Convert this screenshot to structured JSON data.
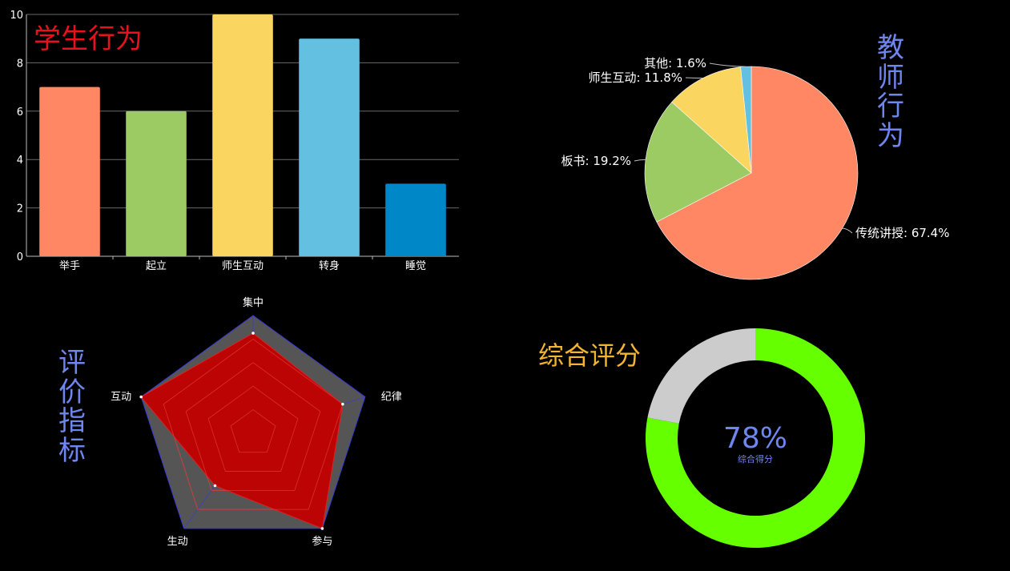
{
  "colors": {
    "background": "#000000",
    "student_title": "#e8121c",
    "teacher_title": "#6f86ee",
    "radar_title": "#6f86ee",
    "score_title": "#f3b531",
    "radar_fill": "#c20000",
    "radar_bg": "#555555",
    "donut_value": "#66ff00",
    "donut_rest": "#cccccc",
    "donut_text": "#6f86ee"
  },
  "student_behavior": {
    "title": "学生行为"
  },
  "teacher_behavior": {
    "title": "教师行为"
  },
  "evaluation": {
    "title": "评价指标"
  },
  "overall": {
    "title": "综合评分",
    "value_label": "78%",
    "sub_label": "综合得分"
  },
  "chart_data": [
    {
      "type": "bar",
      "title": "学生行为",
      "categories": [
        "举手",
        "起立",
        "师生互动",
        "转身",
        "睡觉"
      ],
      "values": [
        7,
        6,
        10,
        9,
        3
      ],
      "bar_colors": [
        "#ff8763",
        "#9ccb63",
        "#fad55f",
        "#63c0e1",
        "#0087c8"
      ],
      "ylim": [
        0,
        10
      ],
      "yticks": [
        "0",
        "2",
        "4",
        "6",
        "8",
        "10"
      ],
      "grid": true,
      "xlabel": "",
      "ylabel": ""
    },
    {
      "type": "pie",
      "title": "教师行为",
      "labels": [
        "传统讲授",
        "板书",
        "师生互动",
        "其他"
      ],
      "values": [
        67.4,
        19.2,
        11.8,
        1.6
      ],
      "display_labels": [
        "传统讲授: 67.4%",
        "板书: 19.2%",
        "师生互动: 11.8%",
        "其他: 1.6%"
      ],
      "slice_colors": [
        "#ff8763",
        "#9ccb63",
        "#fad55f",
        "#63c0e1"
      ]
    },
    {
      "type": "radar",
      "title": "评价指标",
      "axes": [
        "集中",
        "纪律",
        "参与",
        "生动",
        "互动"
      ],
      "values": [
        0.85,
        0.8,
        1.0,
        0.55,
        1.0
      ],
      "max": 1
    },
    {
      "type": "donut",
      "title": "综合评分",
      "value": 78,
      "max": 100,
      "center_label": "78%",
      "sub_label": "综合得分"
    }
  ]
}
